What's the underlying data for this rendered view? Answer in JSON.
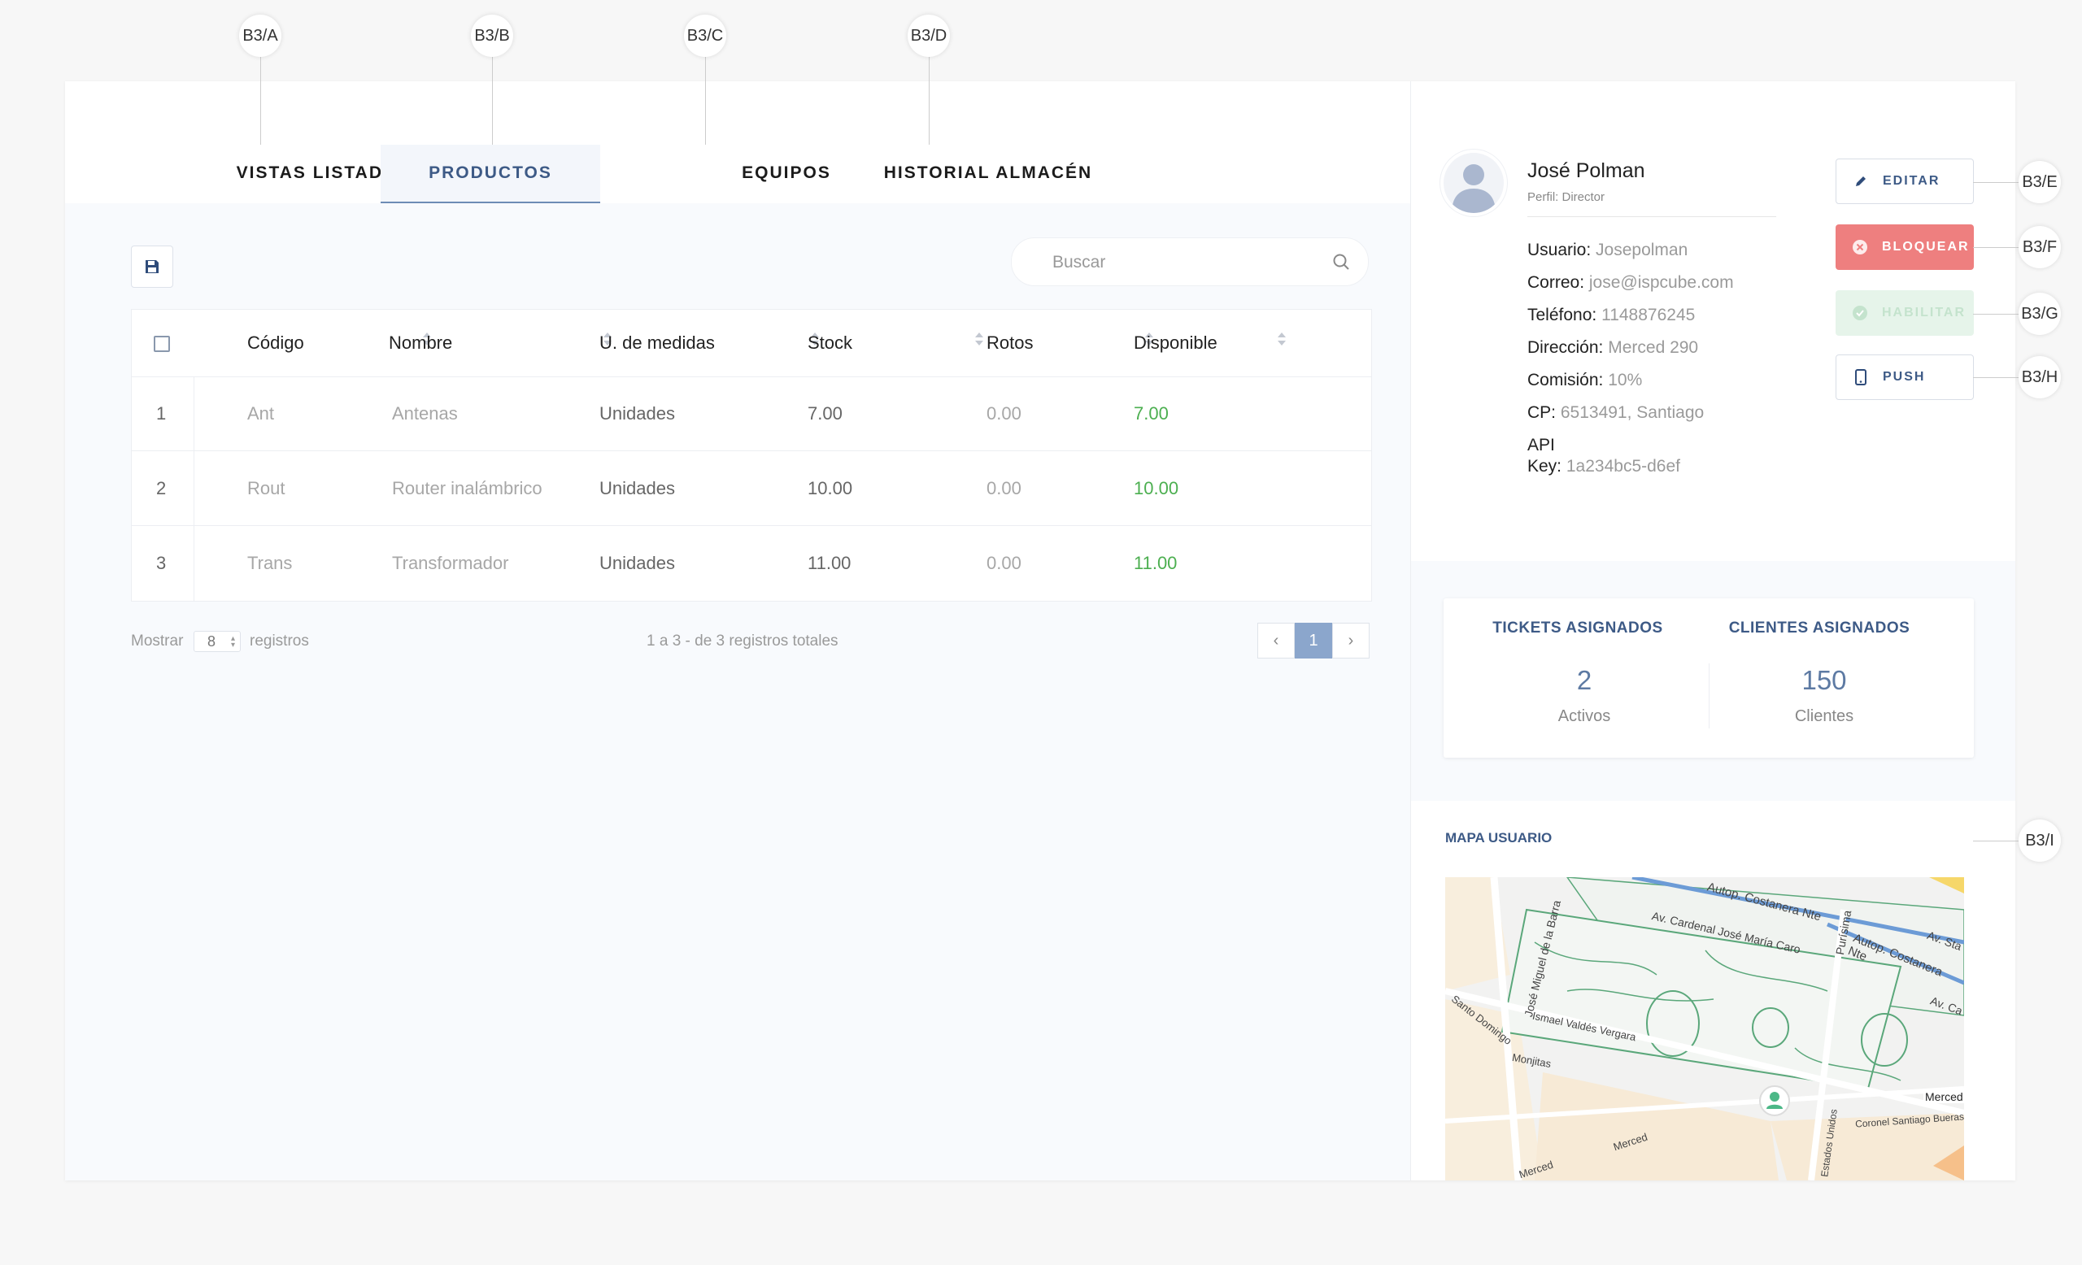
{
  "callouts": {
    "a": "B3/A",
    "b": "B3/B",
    "c": "B3/C",
    "d": "B3/D",
    "e": "B3/E",
    "f": "B3/F",
    "g": "B3/G",
    "h": "B3/H",
    "i": "B3/I"
  },
  "tabs": [
    {
      "label": "VISTAS LISTADOS",
      "active": false
    },
    {
      "label": "PRODUCTOS",
      "active": true
    },
    {
      "label": "EQUIPOS",
      "active": false
    },
    {
      "label": "HISTORIAL ALMACÉN",
      "active": false
    }
  ],
  "toolbar": {
    "save_icon": "floppy-disk-icon"
  },
  "search": {
    "placeholder": "Buscar",
    "value": ""
  },
  "table": {
    "headers": [
      "Código",
      "Nombre",
      "U. de medidas",
      "Stock",
      "Rotos",
      "Disponible"
    ],
    "rows": [
      {
        "index": "1",
        "codigo": "Ant",
        "nombre": "Antenas",
        "unidad": "Unidades",
        "stock": "7.00",
        "rotos": "0.00",
        "disponible": "7.00"
      },
      {
        "index": "2",
        "codigo": "Rout",
        "nombre": "Router inalámbrico",
        "unidad": "Unidades",
        "stock": "10.00",
        "rotos": "0.00",
        "disponible": "10.00"
      },
      {
        "index": "3",
        "codigo": "Trans",
        "nombre": "Transformador",
        "unidad": "Unidades",
        "stock": "11.00",
        "rotos": "0.00",
        "disponible": "11.00"
      }
    ]
  },
  "footer": {
    "show_label": "Mostrar",
    "per_page": "8",
    "records_label": "registros",
    "summary": "1 a 3 - de 3 registros totales",
    "current_page": "1"
  },
  "profile": {
    "name": "José Polman",
    "role": "Perfil: Director",
    "fields": [
      {
        "label": "Usuario:",
        "value": "Josepolman"
      },
      {
        "label": "Correo:",
        "value": "jose@ispcube.com"
      },
      {
        "label": "Teléfono:",
        "value": "1148876245"
      },
      {
        "label": "Dirección:",
        "value": "Merced 290"
      },
      {
        "label": "Comisión:",
        "value": "10%"
      },
      {
        "label": "CP:",
        "value": "6513491, Santiago"
      }
    ],
    "api_label_1": "API",
    "api_label_2": "Key:",
    "api_value": "1a234bc5-d6ef"
  },
  "actions": {
    "edit": "EDITAR",
    "block": "BLOQUEAR",
    "enable": "HABILITAR",
    "push": "PUSH"
  },
  "stats": {
    "tickets_title": "TICKETS ASIGNADOS",
    "tickets_value": "2",
    "tickets_label": "Activos",
    "clients_title": "CLIENTES ASIGNADOS",
    "clients_value": "150",
    "clients_label": "Clientes"
  },
  "map": {
    "title": "MAPA USUARIO",
    "streets": [
      "Autop. Costanera Nte",
      "Av. Cardenal José María Caro",
      "Purísima",
      "Autop. Costanera Nte",
      "Av. Sta",
      "José Miguel de la Barra",
      "Ismael Valdés Vergara",
      "Santo Domingo",
      "Monjitas",
      "Av. Ca",
      "Merced",
      "Coronel Santiago Bueras",
      "Merced",
      "Merced",
      "Estados Unidos"
    ]
  },
  "colors": {
    "accent": "#3d5a86",
    "danger": "#ee7f7f",
    "success": "#4caf50",
    "park": "#5aa77a"
  }
}
